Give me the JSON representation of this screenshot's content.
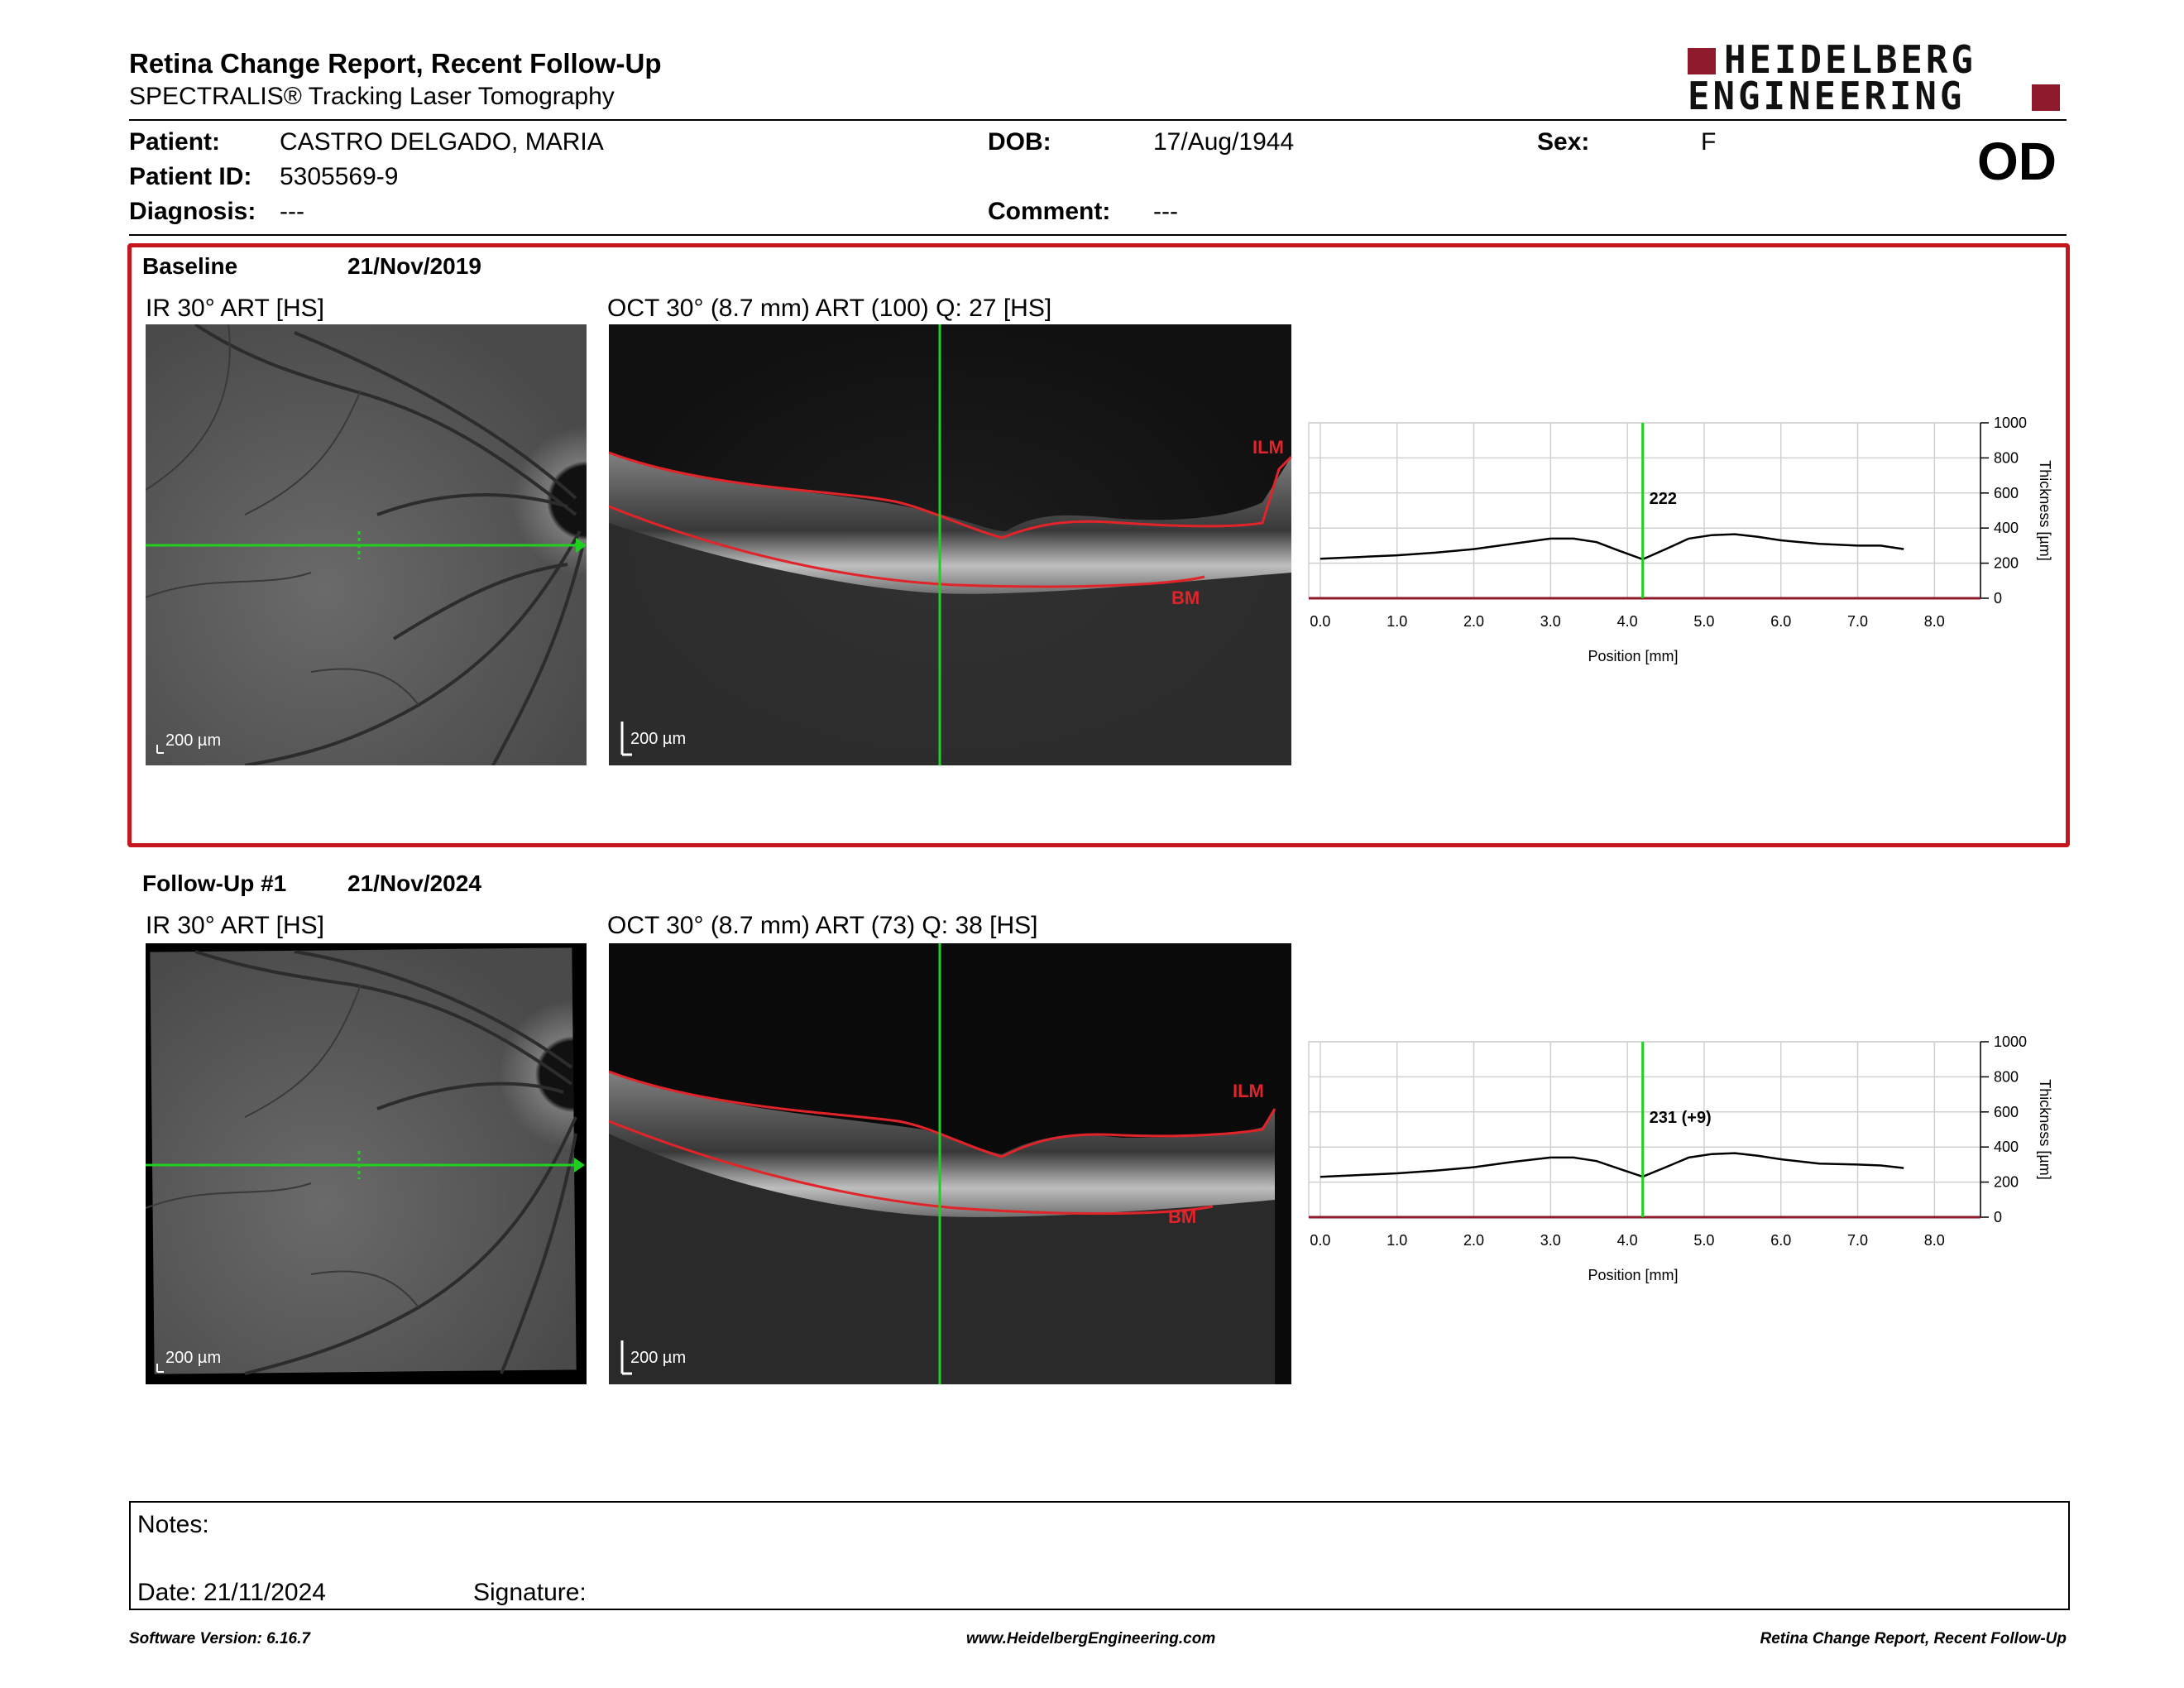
{
  "report": {
    "title": "Retina Change Report, Recent Follow-Up",
    "subtitle": "SPECTRALIS® Tracking Laser Tomography",
    "eye": "OD"
  },
  "logo": {
    "line1": "HEIDELBERG",
    "line2": "ENGINEERING",
    "brand_color": "#8e1a2b"
  },
  "patient": {
    "patient_label": "Patient:",
    "patient_value": "CASTRO DELGADO, MARIA",
    "id_label": "Patient ID:",
    "id_value": "5305569-9",
    "diagnosis_label": "Diagnosis:",
    "diagnosis_value": "---",
    "dob_label": "DOB:",
    "dob_value": "17/Aug/1944",
    "comment_label": "Comment:",
    "comment_value": "---",
    "sex_label": "Sex:",
    "sex_value": "F"
  },
  "baseline": {
    "label": "Baseline",
    "date": "21/Nov/2019",
    "ir_caption": "IR 30° ART [HS]",
    "oct_caption": "OCT 30° (8.7 mm) ART (100) Q: 27 [HS]",
    "scale": "200 µm",
    "ilm": "ILM",
    "bm": "BM",
    "marker_value": "222"
  },
  "followup": {
    "label": "Follow-Up #1",
    "date": "21/Nov/2024",
    "ir_caption": "IR 30° ART [HS]",
    "oct_caption": "OCT 30° (8.7 mm) ART (73) Q: 38 [HS]",
    "scale": "200 µm",
    "ilm": "ILM",
    "bm": "BM",
    "marker_value": "231 (+9)"
  },
  "chart_data": [
    {
      "type": "line",
      "xlabel": "Position [mm]",
      "ylabel": "Thickness [µm]",
      "xlim": [
        -0.15,
        8.6
      ],
      "ylim": [
        0,
        1000
      ],
      "x_ticks": [
        "0.0",
        "1.0",
        "2.0",
        "3.0",
        "4.0",
        "5.0",
        "6.0",
        "7.0",
        "8.0"
      ],
      "y_ticks": [
        "0",
        "200",
        "400",
        "600",
        "800",
        "1000"
      ],
      "grid": true,
      "marker_x": 4.2,
      "series": [
        {
          "x": [
            0.0,
            0.5,
            1.0,
            1.5,
            2.0,
            2.5,
            3.0,
            3.3,
            3.6,
            3.9,
            4.2,
            4.5,
            4.8,
            5.1,
            5.4,
            5.7,
            6.0,
            6.5,
            7.0,
            7.3,
            7.6
          ],
          "values": [
            225,
            235,
            245,
            260,
            280,
            310,
            340,
            340,
            320,
            270,
            222,
            280,
            340,
            360,
            365,
            350,
            330,
            310,
            300,
            300,
            280
          ]
        }
      ]
    },
    {
      "type": "line",
      "xlabel": "Position [mm]",
      "ylabel": "Thickness [µm]",
      "xlim": [
        -0.15,
        8.6
      ],
      "ylim": [
        0,
        1000
      ],
      "x_ticks": [
        "0.0",
        "1.0",
        "2.0",
        "3.0",
        "4.0",
        "5.0",
        "6.0",
        "7.0",
        "8.0"
      ],
      "y_ticks": [
        "0",
        "200",
        "400",
        "600",
        "800",
        "1000"
      ],
      "grid": true,
      "marker_x": 4.2,
      "series": [
        {
          "x": [
            0.0,
            0.5,
            1.0,
            1.5,
            2.0,
            2.5,
            3.0,
            3.3,
            3.6,
            3.9,
            4.2,
            4.5,
            4.8,
            5.1,
            5.4,
            5.7,
            6.0,
            6.5,
            7.0,
            7.3,
            7.6
          ],
          "values": [
            230,
            240,
            250,
            265,
            285,
            315,
            340,
            340,
            320,
            275,
            231,
            285,
            340,
            360,
            365,
            350,
            330,
            305,
            300,
            295,
            280
          ]
        }
      ]
    }
  ],
  "notes": {
    "notes_label": "Notes:",
    "date_label": "Date: 21/11/2024",
    "signature_label": "Signature:"
  },
  "footer": {
    "software": "Software Version: 6.16.7",
    "website": "www.HeidelbergEngineering.com",
    "report_name": "Retina Change Report, Recent Follow-Up"
  }
}
